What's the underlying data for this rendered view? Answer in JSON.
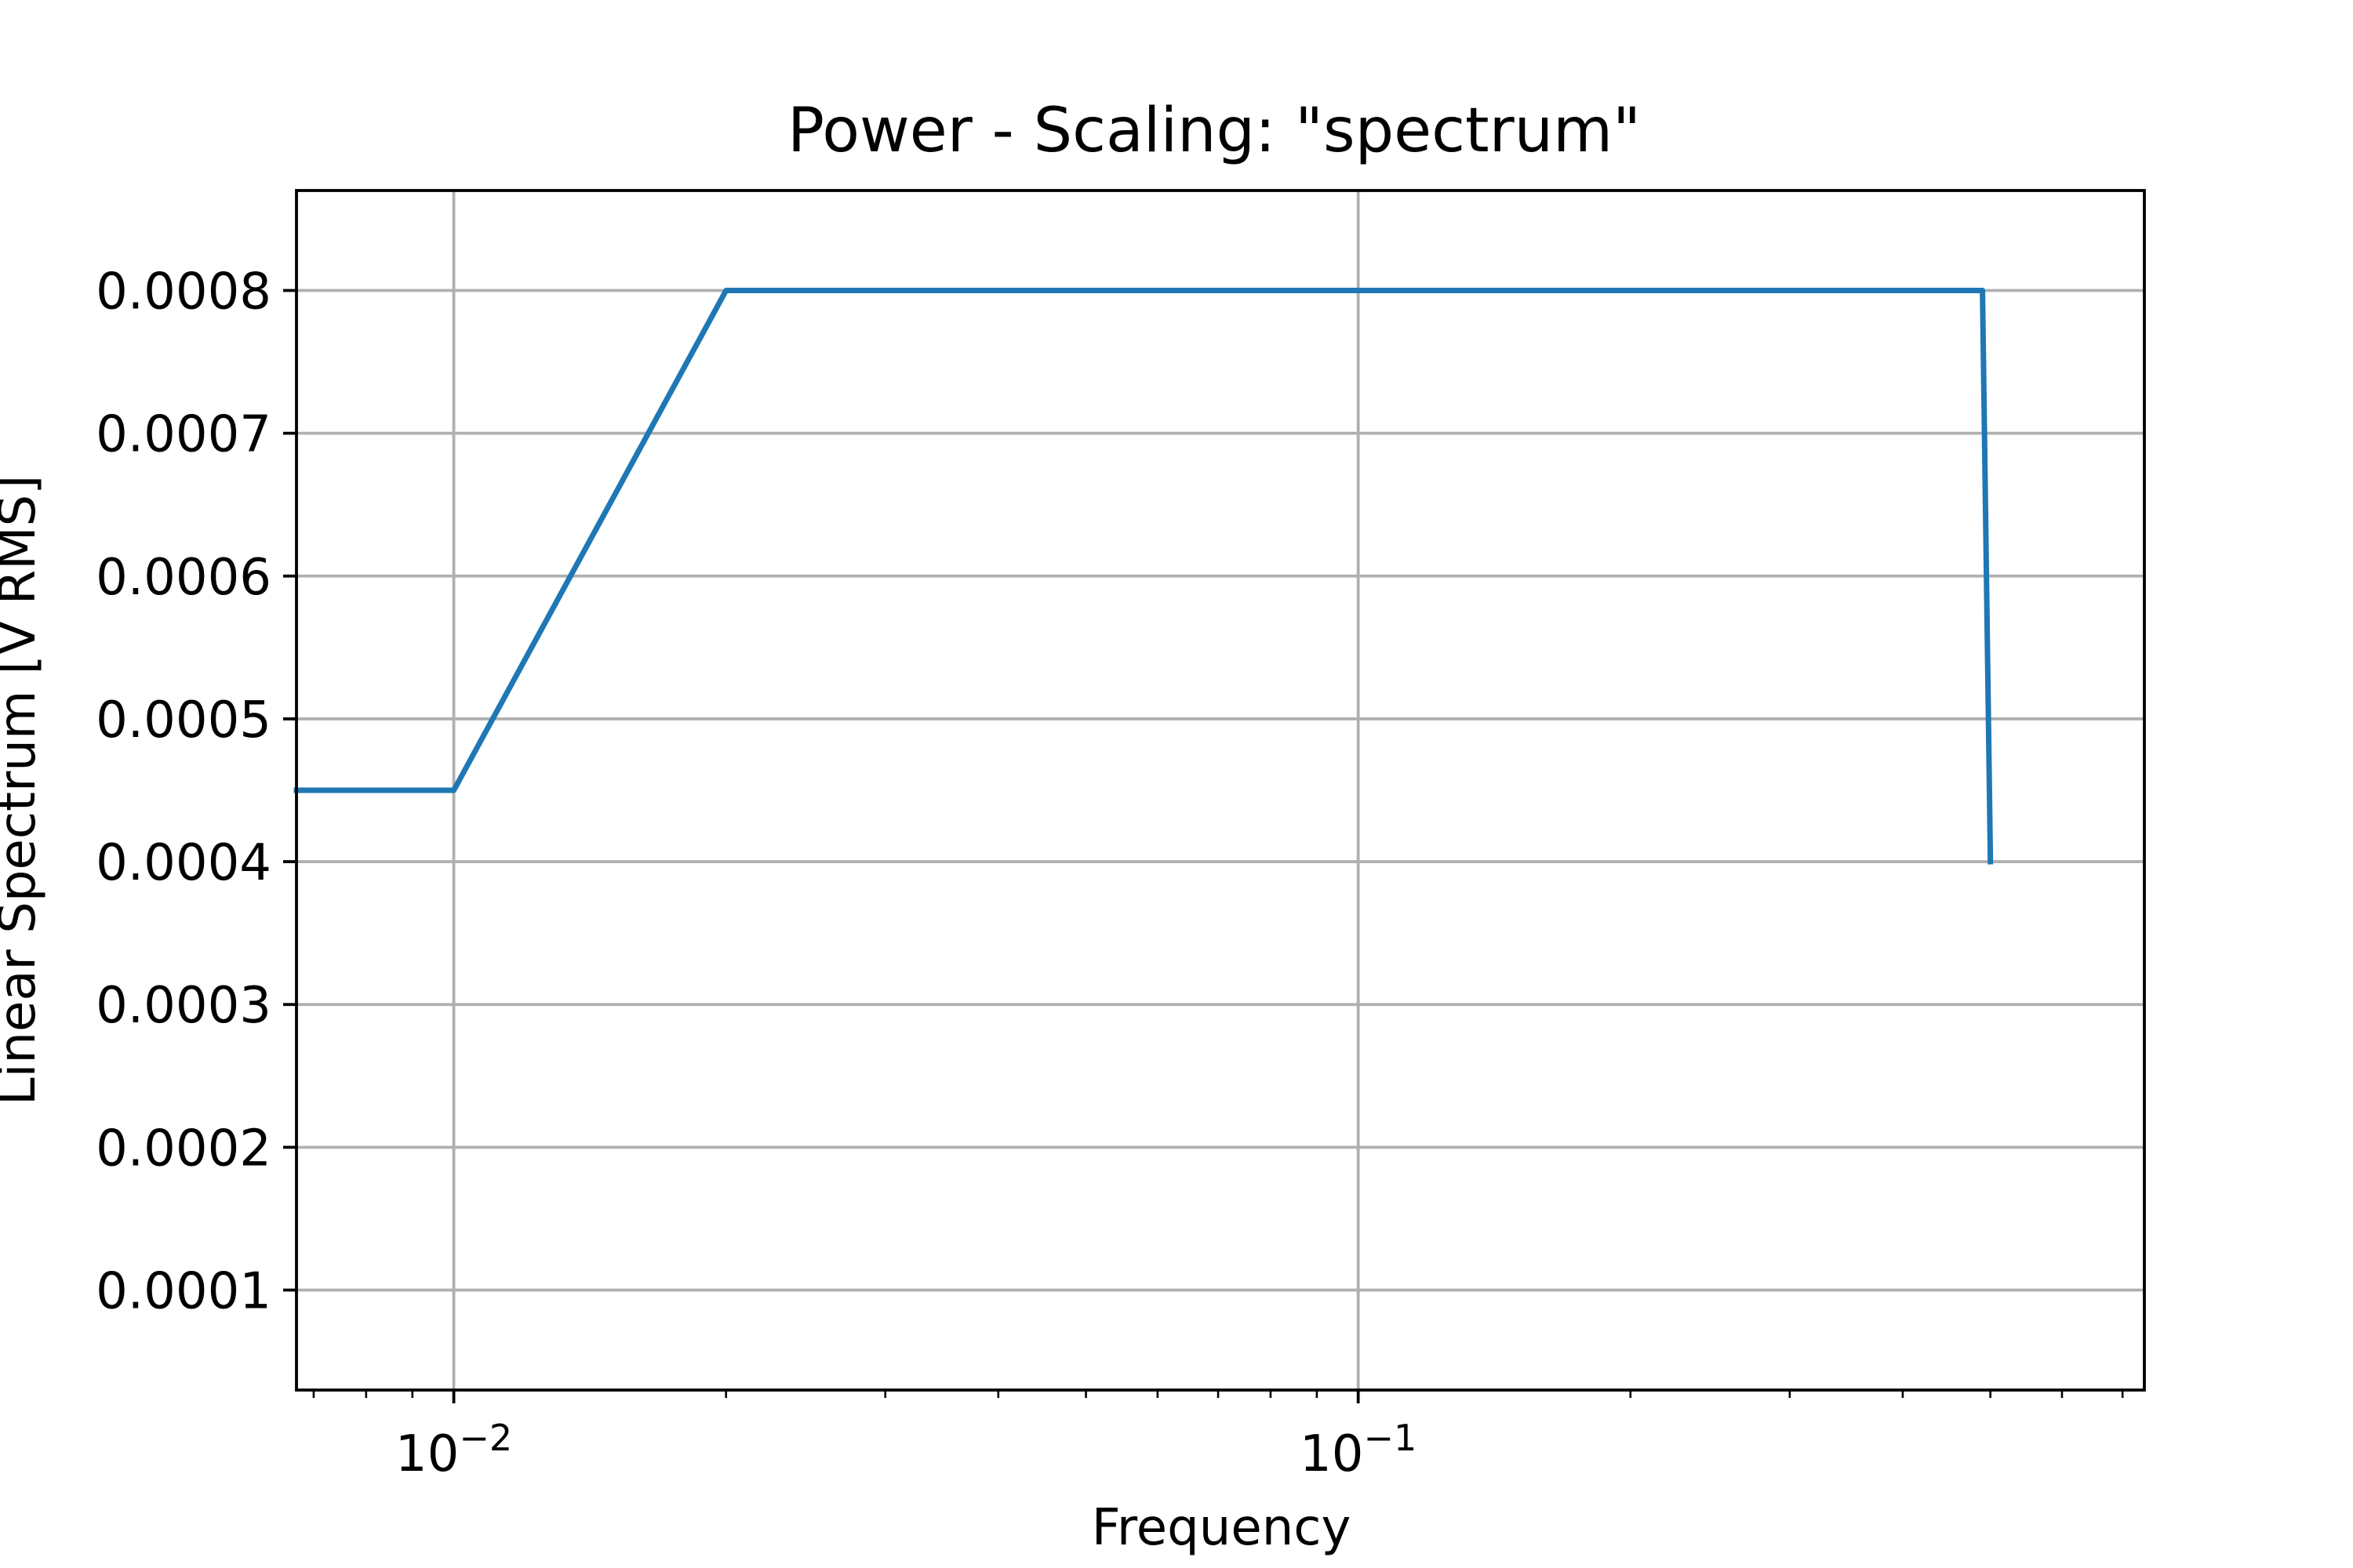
{
  "chart_data": {
    "type": "line",
    "title": "Power - Scaling: \"spectrum\"",
    "xlabel": "Frequency",
    "ylabel": "Linear Spectrum [V RMS]",
    "xscale": "log",
    "xlim": [
      0.0067,
      0.74
    ],
    "ylim": [
      3e-05,
      0.00087
    ],
    "grid": true,
    "x_ticks": [
      {
        "value": 0.01,
        "base": "10",
        "exp": "−2"
      },
      {
        "value": 0.1,
        "base": "10",
        "exp": "−1"
      }
    ],
    "y_ticks": [
      {
        "value": 0.0001,
        "label": "0.0001"
      },
      {
        "value": 0.0002,
        "label": "0.0002"
      },
      {
        "value": 0.0003,
        "label": "0.0003"
      },
      {
        "value": 0.0004,
        "label": "0.0004"
      },
      {
        "value": 0.0005,
        "label": "0.0005"
      },
      {
        "value": 0.0006,
        "label": "0.0006"
      },
      {
        "value": 0.0007,
        "label": "0.0007"
      },
      {
        "value": 0.0008,
        "label": "0.0008"
      }
    ],
    "series": [
      {
        "color": "#1f77b4",
        "x": [
          0.0067,
          0.01,
          0.02,
          0.49,
          0.5
        ],
        "y": [
          0.00045,
          0.00045,
          0.0008,
          0.0008,
          0.0004
        ]
      }
    ]
  }
}
